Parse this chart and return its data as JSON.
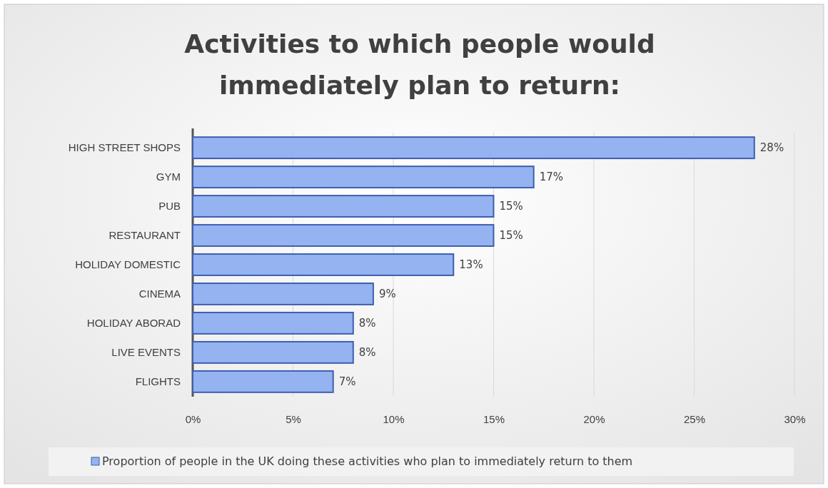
{
  "chart_data": {
    "type": "bar",
    "orientation": "horizontal",
    "title": "Activities to which people would immediately plan to return:",
    "categories": [
      "HIGH STREET SHOPS",
      "GYM",
      "PUB",
      "RESTAURANT",
      "HOLIDAY DOMESTIC",
      "CINEMA",
      "HOLIDAY ABORAD",
      "LIVE EVENTS",
      "FLIGHTS"
    ],
    "series": [
      {
        "name": "Proportion of people in the UK doing these activities who plan to immediately return to them",
        "color": "#94b3f0",
        "values": [
          28,
          17,
          15,
          15,
          13,
          9,
          8,
          8,
          7
        ]
      }
    ],
    "value_labels": [
      "28%",
      "17%",
      "15%",
      "15%",
      "13%",
      "9%",
      "8%",
      "8%",
      "7%"
    ],
    "xlim": [
      0,
      30
    ],
    "xticks": [
      {
        "value": 0,
        "label": "0%"
      },
      {
        "value": 5,
        "label": "5%"
      },
      {
        "value": 10,
        "label": "10%"
      },
      {
        "value": 15,
        "label": "15%"
      },
      {
        "value": 20,
        "label": "20%"
      },
      {
        "value": 25,
        "label": "25%"
      },
      {
        "value": 30,
        "label": "30%"
      }
    ],
    "grid": "x",
    "legend": "bottom"
  }
}
